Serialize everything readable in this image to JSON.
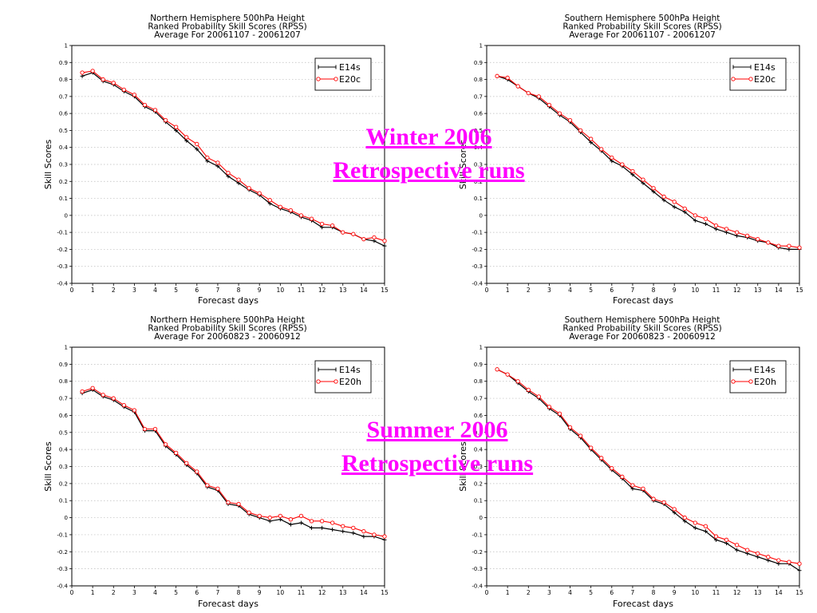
{
  "overlay": {
    "winter_line1": "Winter 2006",
    "winter_line2": "Retrospective runs",
    "summer_line1": "Summer 2006",
    "summer_line2": "Retrospective runs"
  },
  "colors": {
    "overlay": "#ff00ff",
    "series_a": "#000000",
    "series_b": "#ff0000",
    "grid": "#bbbbbb"
  },
  "chart_data": [
    {
      "type": "line",
      "title": [
        "Northern Hemisphere 500hPa Height",
        "Ranked Probability Skill Scores (RPSS)",
        "Average For 20061107 - 20061207"
      ],
      "xlabel": "Forecast days",
      "ylabel": "Skill Scores",
      "xlim": [
        0,
        15
      ],
      "ylim": [
        -0.4,
        1
      ],
      "xticks": [
        "0",
        "1",
        "2",
        "3",
        "4",
        "5",
        "6",
        "7",
        "8",
        "9",
        "10",
        "11",
        "12",
        "13",
        "14",
        "15"
      ],
      "yticks": [
        "-0.4",
        "-0.3",
        "-0.2",
        "-0.1",
        "0",
        "0.1",
        "0.2",
        "0.3",
        "0.4",
        "0.5",
        "0.6",
        "0.7",
        "0.8",
        "0.9",
        "1"
      ],
      "grid": "horizontal dotted",
      "legend_position": "top-right",
      "x": [
        0.5,
        1,
        1.5,
        2,
        2.5,
        3,
        3.5,
        4,
        4.5,
        5,
        5.5,
        6,
        6.5,
        7,
        7.5,
        8,
        8.5,
        9,
        9.5,
        10,
        10.5,
        11,
        11.5,
        12,
        12.5,
        13,
        13.5,
        14,
        14.5,
        15
      ],
      "series": [
        {
          "name": "E14s",
          "values": [
            0.82,
            0.84,
            0.79,
            0.77,
            0.73,
            0.7,
            0.64,
            0.61,
            0.55,
            0.5,
            0.44,
            0.39,
            0.32,
            0.29,
            0.23,
            0.19,
            0.15,
            0.12,
            0.07,
            0.04,
            0.02,
            -0.01,
            -0.03,
            -0.07,
            -0.07,
            -0.1,
            -0.11,
            -0.14,
            -0.15,
            -0.18
          ]
        },
        {
          "name": "E20c",
          "values": [
            0.84,
            0.85,
            0.8,
            0.78,
            0.74,
            0.71,
            0.65,
            0.62,
            0.56,
            0.52,
            0.46,
            0.42,
            0.34,
            0.31,
            0.25,
            0.21,
            0.16,
            0.13,
            0.09,
            0.05,
            0.03,
            0.0,
            -0.02,
            -0.05,
            -0.06,
            -0.1,
            -0.11,
            -0.14,
            -0.13,
            -0.15
          ]
        }
      ]
    },
    {
      "type": "line",
      "title": [
        "Southern Hemisphere 500hPa Height",
        "Ranked Probability Skill Scores (RPSS)",
        "Average For 20061107 - 20061207"
      ],
      "xlabel": "Forecast days",
      "ylabel": "Skill Scores",
      "xlim": [
        0,
        15
      ],
      "ylim": [
        -0.4,
        1
      ],
      "xticks": [
        "0",
        "1",
        "2",
        "3",
        "4",
        "5",
        "6",
        "7",
        "8",
        "9",
        "10",
        "11",
        "12",
        "13",
        "14",
        "15"
      ],
      "yticks": [
        "-0.4",
        "-0.3",
        "-0.2",
        "-0.1",
        "0",
        "0.1",
        "0.2",
        "0.3",
        "0.4",
        "0.5",
        "0.6",
        "0.7",
        "0.8",
        "0.9",
        "1"
      ],
      "grid": "horizontal dotted",
      "legend_position": "top-right",
      "x": [
        0.5,
        1,
        1.5,
        2,
        2.5,
        3,
        3.5,
        4,
        4.5,
        5,
        5.5,
        6,
        6.5,
        7,
        7.5,
        8,
        8.5,
        9,
        9.5,
        10,
        10.5,
        11,
        11.5,
        12,
        12.5,
        13,
        13.5,
        14,
        14.5,
        15
      ],
      "series": [
        {
          "name": "E14s",
          "values": [
            0.82,
            0.8,
            0.76,
            0.72,
            0.69,
            0.64,
            0.59,
            0.55,
            0.49,
            0.43,
            0.38,
            0.32,
            0.29,
            0.24,
            0.19,
            0.14,
            0.09,
            0.05,
            0.02,
            -0.03,
            -0.05,
            -0.08,
            -0.1,
            -0.12,
            -0.13,
            -0.15,
            -0.16,
            -0.19,
            -0.2,
            -0.2
          ]
        },
        {
          "name": "E20c",
          "values": [
            0.82,
            0.81,
            0.76,
            0.72,
            0.7,
            0.65,
            0.6,
            0.56,
            0.5,
            0.45,
            0.39,
            0.34,
            0.3,
            0.26,
            0.21,
            0.16,
            0.11,
            0.08,
            0.04,
            0.0,
            -0.02,
            -0.06,
            -0.08,
            -0.1,
            -0.12,
            -0.14,
            -0.16,
            -0.18,
            -0.18,
            -0.19
          ]
        }
      ]
    },
    {
      "type": "line",
      "title": [
        "Northern Hemisphere 500hPa Height",
        "Ranked Probability Skill Scores (RPSS)",
        "Average For 20060823 - 20060912"
      ],
      "xlabel": "Forecast days",
      "ylabel": "Skill Scores",
      "xlim": [
        0,
        15
      ],
      "ylim": [
        -0.4,
        1
      ],
      "xticks": [
        "0",
        "1",
        "2",
        "3",
        "4",
        "5",
        "6",
        "7",
        "8",
        "9",
        "10",
        "11",
        "12",
        "13",
        "14",
        "15"
      ],
      "yticks": [
        "-0.4",
        "-0.3",
        "-0.2",
        "-0.1",
        "0",
        "0.1",
        "0.2",
        "0.3",
        "0.4",
        "0.5",
        "0.6",
        "0.7",
        "0.8",
        "0.9",
        "1"
      ],
      "grid": "horizontal dotted",
      "legend_position": "top-right",
      "x": [
        0.5,
        1,
        1.5,
        2,
        2.5,
        3,
        3.5,
        4,
        4.5,
        5,
        5.5,
        6,
        6.5,
        7,
        7.5,
        8,
        8.5,
        9,
        9.5,
        10,
        10.5,
        11,
        11.5,
        12,
        12.5,
        13,
        13.5,
        14,
        14.5,
        15
      ],
      "series": [
        {
          "name": "E14s",
          "values": [
            0.73,
            0.75,
            0.71,
            0.69,
            0.65,
            0.62,
            0.51,
            0.51,
            0.42,
            0.37,
            0.31,
            0.26,
            0.18,
            0.16,
            0.08,
            0.07,
            0.02,
            0.0,
            -0.02,
            -0.01,
            -0.04,
            -0.03,
            -0.06,
            -0.06,
            -0.07,
            -0.08,
            -0.09,
            -0.11,
            -0.11,
            -0.13
          ]
        },
        {
          "name": "E20h",
          "values": [
            0.74,
            0.76,
            0.72,
            0.7,
            0.66,
            0.63,
            0.52,
            0.52,
            0.43,
            0.38,
            0.32,
            0.27,
            0.19,
            0.17,
            0.09,
            0.08,
            0.03,
            0.01,
            0.0,
            0.01,
            -0.01,
            0.01,
            -0.02,
            -0.02,
            -0.03,
            -0.05,
            -0.06,
            -0.08,
            -0.1,
            -0.11
          ]
        }
      ]
    },
    {
      "type": "line",
      "title": [
        "Southern Hemisphere 500hPa Height",
        "Ranked Probability Skill Scores (RPSS)",
        "Average For 20060823 - 20060912"
      ],
      "xlabel": "Forecast days",
      "ylabel": "Skill Scores",
      "xlim": [
        0,
        15
      ],
      "ylim": [
        -0.4,
        1
      ],
      "xticks": [
        "0",
        "1",
        "2",
        "3",
        "4",
        "5",
        "6",
        "7",
        "8",
        "9",
        "10",
        "11",
        "12",
        "13",
        "14",
        "15"
      ],
      "yticks": [
        "-0.4",
        "-0.3",
        "-0.2",
        "-0.1",
        "0",
        "0.1",
        "0.2",
        "0.3",
        "0.4",
        "0.5",
        "0.6",
        "0.7",
        "0.8",
        "0.9",
        "1"
      ],
      "grid": "horizontal dotted",
      "legend_position": "top-right",
      "x": [
        0.5,
        1,
        1.5,
        2,
        2.5,
        3,
        3.5,
        4,
        4.5,
        5,
        5.5,
        6,
        6.5,
        7,
        7.5,
        8,
        8.5,
        9,
        9.5,
        10,
        10.5,
        11,
        11.5,
        12,
        12.5,
        13,
        13.5,
        14,
        14.5,
        15
      ],
      "series": [
        {
          "name": "E14s",
          "values": [
            0.87,
            0.84,
            0.79,
            0.74,
            0.7,
            0.64,
            0.6,
            0.52,
            0.47,
            0.4,
            0.34,
            0.28,
            0.23,
            0.17,
            0.16,
            0.1,
            0.08,
            0.03,
            -0.02,
            -0.06,
            -0.08,
            -0.13,
            -0.15,
            -0.19,
            -0.21,
            -0.23,
            -0.25,
            -0.27,
            -0.27,
            -0.31
          ]
        },
        {
          "name": "E20h",
          "values": [
            0.87,
            0.84,
            0.8,
            0.75,
            0.71,
            0.65,
            0.61,
            0.53,
            0.48,
            0.41,
            0.35,
            0.29,
            0.24,
            0.19,
            0.17,
            0.11,
            0.09,
            0.05,
            0.0,
            -0.03,
            -0.05,
            -0.11,
            -0.13,
            -0.16,
            -0.19,
            -0.21,
            -0.23,
            -0.25,
            -0.26,
            -0.27
          ]
        }
      ]
    }
  ]
}
